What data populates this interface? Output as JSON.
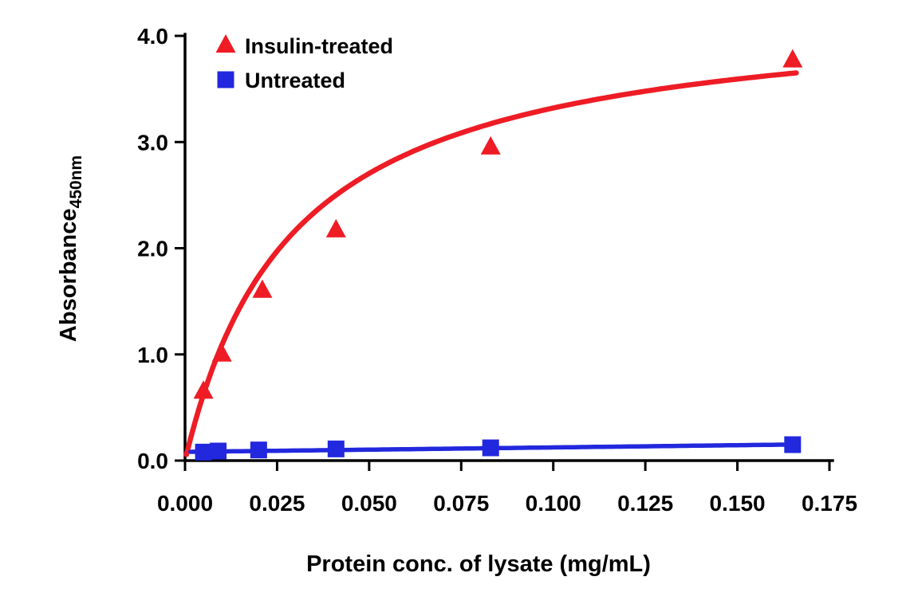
{
  "figure": {
    "background": "#ffffff",
    "text_color": "#000000"
  },
  "chart_data": {
    "type": "scatter",
    "title": "",
    "xlabel": "Protein conc. of lysate (mg/mL)",
    "ylabel_base": "Absorbance",
    "ylabel_subscript": "450nm",
    "xlim": [
      0,
      0.175
    ],
    "ylim": [
      0,
      4.0
    ],
    "x_ticks": [
      0,
      0.025,
      0.05,
      0.075,
      0.1,
      0.125,
      0.15,
      0.175
    ],
    "x_tick_labels": [
      "0.000",
      "0.025",
      "0.050",
      "0.075",
      "0.100",
      "0.125",
      "0.150",
      "0.175"
    ],
    "y_ticks": [
      0,
      1,
      2,
      3,
      4
    ],
    "y_tick_labels": [
      "0.0",
      "1.0",
      "2.0",
      "3.0",
      "4.0"
    ],
    "grid": false,
    "legend_position": "top-left-inside",
    "series": [
      {
        "name": "Insulin-treated",
        "color": "#ee1c25",
        "marker": "triangle",
        "points": [
          {
            "x": 0.005,
            "y": 0.65
          },
          {
            "x": 0.01,
            "y": 1.0
          },
          {
            "x": 0.021,
            "y": 1.6
          },
          {
            "x": 0.041,
            "y": 2.17
          },
          {
            "x": 0.083,
            "y": 2.95
          },
          {
            "x": 0.165,
            "y": 3.77
          }
        ],
        "fit": {
          "type": "michaelis-menten",
          "vmax": 4.3,
          "km": 0.0295,
          "x_start": 0.0004,
          "x_end": 0.166
        }
      },
      {
        "name": "Untreated",
        "color": "#2228dd",
        "marker": "square",
        "points": [
          {
            "x": 0.005,
            "y": 0.08
          },
          {
            "x": 0.009,
            "y": 0.09
          },
          {
            "x": 0.02,
            "y": 0.1
          },
          {
            "x": 0.041,
            "y": 0.11
          },
          {
            "x": 0.083,
            "y": 0.12
          },
          {
            "x": 0.165,
            "y": 0.15
          }
        ],
        "fit": {
          "type": "linear",
          "intercept": 0.082,
          "slope": 0.42,
          "x_start": 0.0015,
          "x_end": 0.165
        }
      }
    ]
  }
}
